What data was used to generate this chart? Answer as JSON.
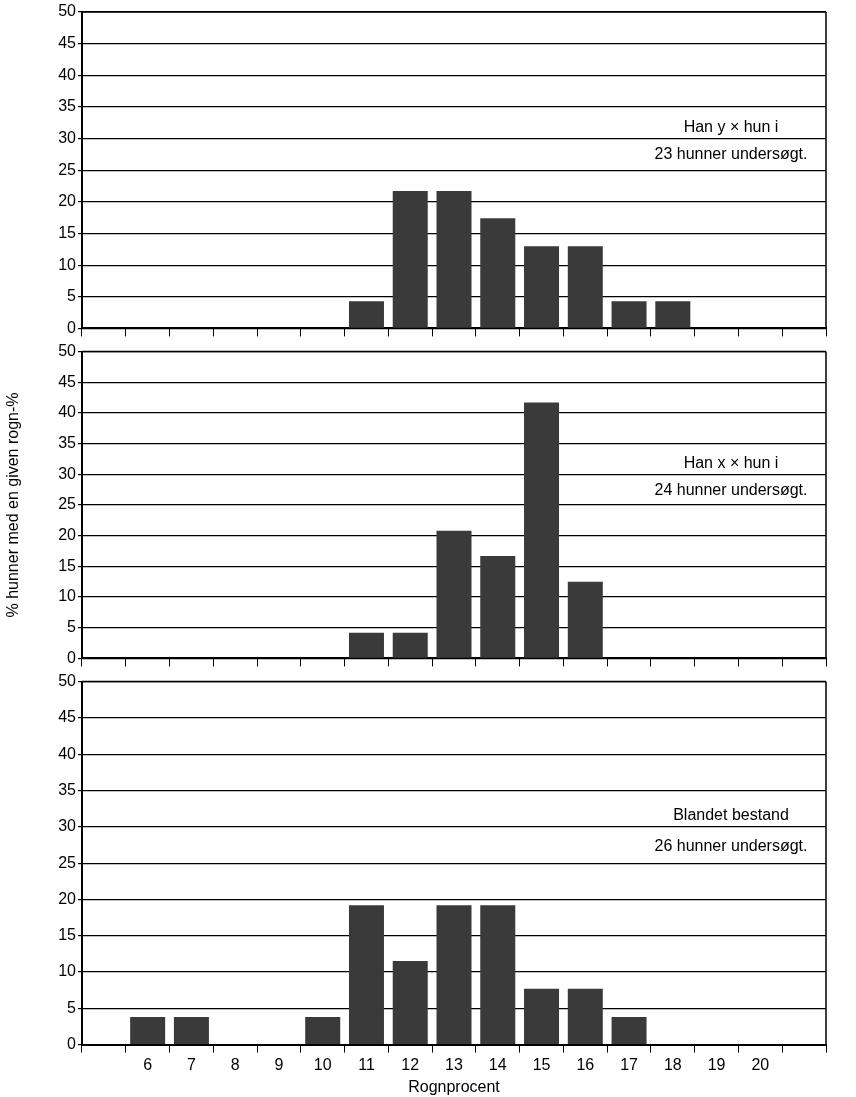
{
  "chart_data": [
    {
      "type": "bar",
      "categories": [
        null,
        "6",
        "7",
        "8",
        "9",
        "10",
        "11",
        "12",
        "13",
        "14",
        "15",
        "16",
        "17",
        "18",
        "19",
        "20",
        null
      ],
      "values": [
        0,
        0,
        0,
        0,
        0,
        0,
        4.3,
        21.7,
        21.7,
        17.4,
        13,
        13,
        4.3,
        4.3,
        0,
        0,
        0
      ],
      "color": "#3a3a3a",
      "ylim": [
        0,
        50
      ],
      "yticks": [
        0,
        5,
        10,
        15,
        20,
        25,
        30,
        35,
        40,
        45,
        50
      ],
      "grid": "y",
      "legend": false,
      "tick_labels": "y",
      "annotations": [
        "Han y × hun i",
        "23 hunner undersøgt."
      ]
    },
    {
      "type": "bar",
      "categories": [
        null,
        "6",
        "7",
        "8",
        "9",
        "10",
        "11",
        "12",
        "13",
        "14",
        "15",
        "16",
        "17",
        "18",
        "19",
        "20",
        null
      ],
      "values": [
        0,
        0,
        0,
        0,
        0,
        0,
        4.2,
        4.2,
        20.8,
        16.7,
        41.7,
        12.5,
        0,
        0,
        0,
        0,
        0
      ],
      "color": "#3a3a3a",
      "ylim": [
        0,
        50
      ],
      "yticks": [
        0,
        5,
        10,
        15,
        20,
        25,
        30,
        35,
        40,
        45,
        50
      ],
      "grid": "y",
      "legend": false,
      "tick_labels": "y",
      "ylabel": "% hunner med en given rogn-%",
      "annotations": [
        "Han x × hun i",
        "24 hunner undersøgt."
      ]
    },
    {
      "type": "bar",
      "categories": [
        null,
        "6",
        "7",
        "8",
        "9",
        "10",
        "11",
        "12",
        "13",
        "14",
        "15",
        "16",
        "17",
        "18",
        "19",
        "20",
        null
      ],
      "values": [
        0,
        3.8,
        3.8,
        0,
        0,
        3.8,
        19.2,
        11.5,
        19.2,
        19.2,
        7.7,
        7.7,
        3.8,
        0,
        0,
        0,
        0
      ],
      "color": "#3a3a3a",
      "ylim": [
        0,
        50
      ],
      "yticks": [
        0,
        5,
        10,
        15,
        20,
        25,
        30,
        35,
        40,
        45,
        50
      ],
      "grid": "y",
      "legend": false,
      "xlabel": "Rognprocent",
      "annotations": [
        "Blandet bestand",
        "26 hunner undersøgt."
      ]
    }
  ]
}
